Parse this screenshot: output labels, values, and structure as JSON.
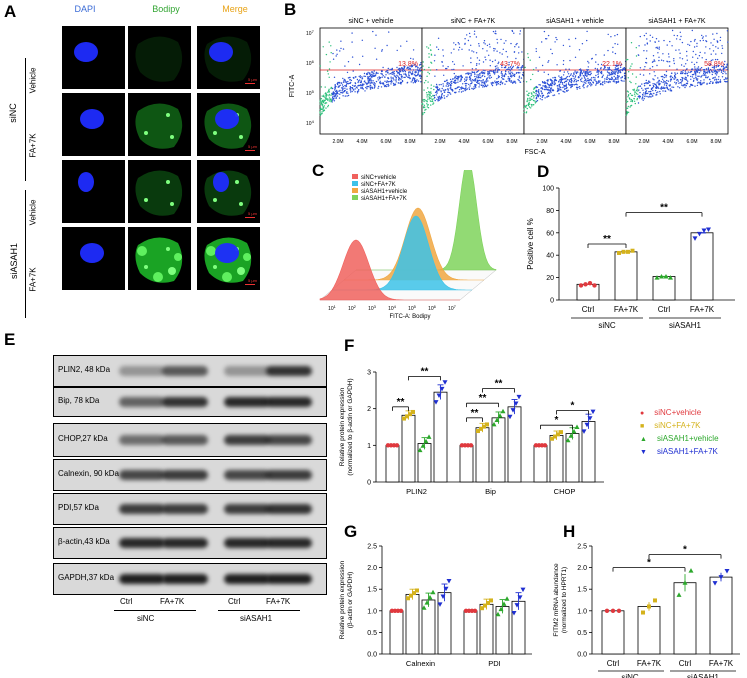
{
  "panels": {
    "a": "A",
    "b": "B",
    "c": "C",
    "d": "D",
    "e": "E",
    "f": "F",
    "g": "G",
    "h": "H"
  },
  "panel_a": {
    "columns": [
      "DAPI",
      "Bodipy",
      "Merge"
    ],
    "column_colors": [
      "#3a6bd6",
      "#33a533",
      "#e8a317"
    ],
    "groups": [
      "siNC",
      "siASAH1"
    ],
    "rows": [
      "Vehicle",
      "FA+7K",
      "Vehicle",
      "FA+7K"
    ],
    "scale": "5 μm"
  },
  "panel_b": {
    "titles": [
      "siNC + vehicle",
      "siNC + FA+7K",
      "siASAH1 + vehicle",
      "siASAH1 + FA+7K"
    ],
    "percents": [
      "13.8%",
      "43.7%",
      "22.1%",
      "58.8%"
    ],
    "ylabel": "FITC-A",
    "xlabel": "FSC-A",
    "yticks": [
      "10^7",
      "10^6",
      "10^5",
      "10^4"
    ],
    "xticks": [
      "2.0M",
      "4.0M",
      "6.0M",
      "8.0M"
    ]
  },
  "panel_c": {
    "legend": [
      "siNC+vehicle",
      "siNC+FA+7K",
      "siASAH1+vehicle",
      "siASAH1+FA+7K"
    ],
    "colors": [
      "#f0615d",
      "#3cc2e8",
      "#f0a742",
      "#7fd35c"
    ],
    "xlabel": "FITC-A: Bodipy",
    "xticks": [
      "10^1",
      "10^2",
      "10^3",
      "10^4",
      "10^5",
      "10^6",
      "10^7"
    ]
  },
  "chart_data": [
    {
      "type": "bar",
      "panel": "D",
      "ylabel": "Positive cell %",
      "ylim": [
        0,
        100
      ],
      "yticks": [
        0,
        20,
        40,
        60,
        80,
        100
      ],
      "categories": [
        "Ctrl",
        "FA+7K",
        "Ctrl",
        "FA+7K"
      ],
      "groups": [
        "siNC",
        "siASAH1"
      ],
      "values": [
        14,
        43,
        21,
        60
      ],
      "colors": [
        "#e0393e",
        "#d4b21c",
        "#2ca82c",
        "#1f2fd1"
      ],
      "points": [
        [
          13,
          14,
          15,
          13
        ],
        [
          42,
          43,
          43,
          44
        ],
        [
          20,
          21,
          21,
          20
        ],
        [
          55,
          59,
          62,
          63
        ]
      ],
      "significance": [
        "**",
        "**"
      ]
    },
    {
      "type": "bar",
      "panel": "F",
      "ylabel": "Relative protein expression\n(normalized to β-actin or GAPDH)",
      "ylim": [
        0,
        3
      ],
      "yticks": [
        0,
        1,
        2,
        3
      ],
      "categories": [
        "PLIN2",
        "Bip",
        "CHOP"
      ],
      "series": [
        {
          "name": "siNC+vehicle",
          "values": [
            1,
            1,
            1
          ],
          "color": "#e0393e"
        },
        {
          "name": "siNC+FA+7K",
          "values": [
            1.82,
            1.48,
            1.27
          ],
          "color": "#d4b21c"
        },
        {
          "name": "siASAH1+vehicle",
          "values": [
            1.05,
            1.75,
            1.32
          ],
          "color": "#2ca82c"
        },
        {
          "name": "siASAH1+FA+7K",
          "values": [
            2.45,
            2.05,
            1.65
          ],
          "color": "#1f2fd1"
        }
      ],
      "significance": [
        "**",
        "**",
        "**",
        "**",
        "**",
        "*",
        "*"
      ]
    },
    {
      "type": "bar",
      "panel": "G",
      "ylabel": "Relative protein expression\n(β-actin or GAPDH)",
      "ylim": [
        0,
        2.5
      ],
      "yticks": [
        0.0,
        0.5,
        1.0,
        1.5,
        2.0,
        2.5
      ],
      "categories": [
        "Calnexin",
        "PDI"
      ],
      "series": [
        {
          "name": "siNC+vehicle",
          "values": [
            1.0,
            1.0
          ],
          "color": "#e0393e"
        },
        {
          "name": "siNC+FA+7K",
          "values": [
            1.38,
            1.15
          ],
          "color": "#d4b21c"
        },
        {
          "name": "siASAH1+vehicle",
          "values": [
            1.25,
            1.1
          ],
          "color": "#2ca82c"
        },
        {
          "name": "siASAH1+FA+7K",
          "values": [
            1.42,
            1.22
          ],
          "color": "#1f2fd1"
        }
      ]
    },
    {
      "type": "bar",
      "panel": "H",
      "ylabel": "FITM2 mRNA abundance\n(normalized to HPRT1)",
      "ylim": [
        0,
        2.5
      ],
      "yticks": [
        0.0,
        0.5,
        1.0,
        1.5,
        2.0,
        2.5
      ],
      "categories": [
        "Ctrl",
        "FA+7K",
        "Ctrl",
        "FA+7K"
      ],
      "groups": [
        "siNC",
        "siASAH1"
      ],
      "values": [
        1.0,
        1.1,
        1.65,
        1.78
      ],
      "colors": [
        "#e0393e",
        "#d4b21c",
        "#2ca82c",
        "#1f2fd1"
      ],
      "significance": [
        "*",
        "*"
      ]
    }
  ],
  "panel_e": {
    "labels": [
      "PLIN2, 48 kDa",
      "Bip, 78 kDa",
      "CHOP,27 kDa",
      "Calnexin, 90 kDa",
      "PDI,57 kDa",
      "β-actin,43 kDa",
      "GAPDH,37 kDa"
    ],
    "lanes": [
      "Ctrl",
      "FA+7K",
      "Ctrl",
      "FA+7K"
    ],
    "groups": [
      "siNC",
      "siASAH1"
    ]
  },
  "legend_f": [
    "siNC+vehicle",
    "siNC+FA+7K",
    "siASAH1+vehicle",
    "siASAH1+FA+7K"
  ]
}
